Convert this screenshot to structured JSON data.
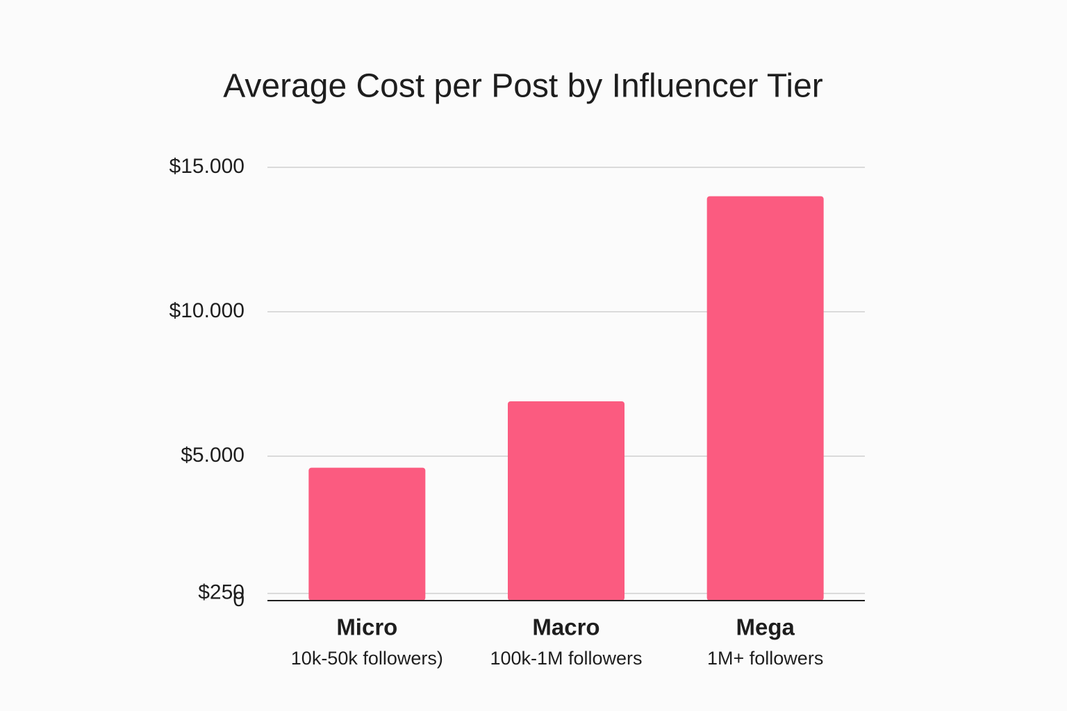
{
  "chart_data": {
    "type": "bar",
    "title": "Average Cost per Post by Influencer Tier",
    "categories": [
      "Micro",
      "Macro",
      "Mega"
    ],
    "category_sublabels": [
      "10k-50k followers)",
      "100k-1M followers",
      "1M+ followers"
    ],
    "values": [
      4600,
      6900,
      14000
    ],
    "color": "#fb5b80",
    "ylim": [
      0,
      15000
    ],
    "yticks": [
      {
        "value": 15000,
        "label": "$15.000"
      },
      {
        "value": 10000,
        "label": "$10.000"
      },
      {
        "value": 5000,
        "label": "$5.000"
      },
      {
        "value": 250,
        "label": "$250"
      },
      0
    ],
    "grid": true
  }
}
